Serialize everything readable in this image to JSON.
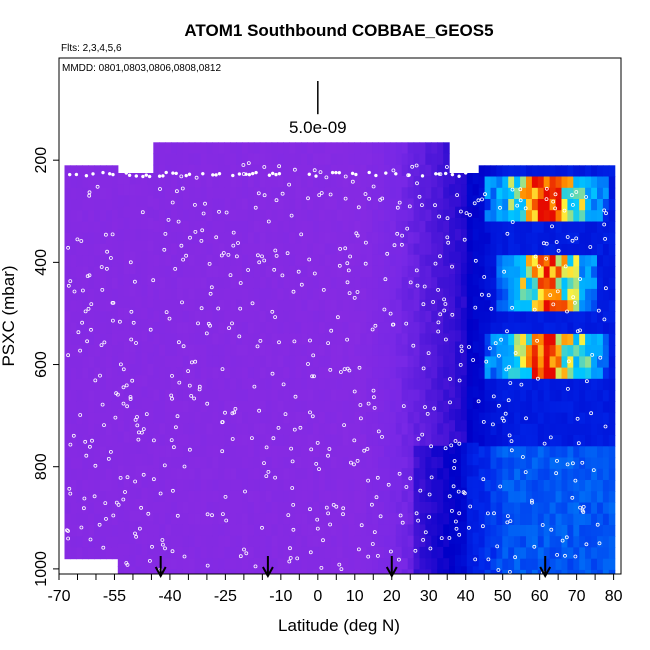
{
  "chart_data": {
    "type": "heatmap",
    "title": "ATOM1 Southbound COBBAE_GEOS5",
    "subtitle_flights": "Flts: 2,3,4,5,6",
    "annotation_dates": "MMDD: 0801,0803,0806,0808,0812",
    "xlabel": "Latitude (deg N)",
    "ylabel": "PSXC (mbar)",
    "xlim": [
      -70,
      82
    ],
    "ylim": [
      1010,
      0
    ],
    "x_ticks": [
      -70,
      -55,
      -40,
      -25,
      -10,
      0,
      10,
      20,
      30,
      40,
      50,
      60,
      70,
      80
    ],
    "y_ticks": [
      200,
      400,
      600,
      800,
      1000
    ],
    "scale_bar_label": "5.0e-09",
    "scale_bar_latitude": 0,
    "scale_bar_pressure_range": [
      45,
      110
    ],
    "arrow_latitudes": [
      -42.5,
      -13.5,
      20,
      61.5
    ],
    "colors": {
      "background_field": "#8a2be2",
      "low": "#0000cc",
      "mid": "#00bfff",
      "high": "#ff2200"
    },
    "high_concentration_bands": [
      {
        "lat_range": [
          44,
          78
        ],
        "pressure_range": [
          220,
          310
        ]
      },
      {
        "lat_range": [
          48,
          75
        ],
        "pressure_range": [
          380,
          480
        ]
      },
      {
        "lat_range": [
          44,
          78
        ],
        "pressure_range": [
          520,
          620
        ]
      }
    ]
  }
}
